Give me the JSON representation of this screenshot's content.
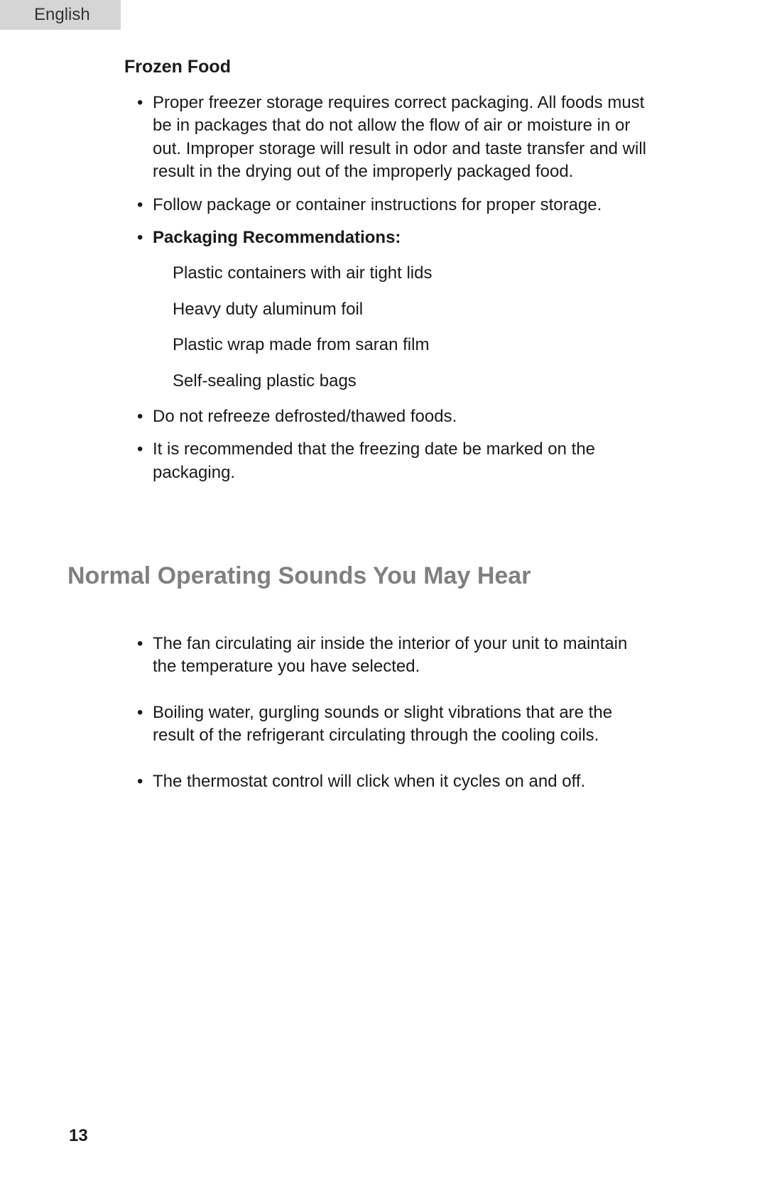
{
  "language_tab": "English",
  "frozen_food": {
    "title": "Frozen Food",
    "bullets": {
      "b1": "Proper freezer storage requires correct packaging.  All foods must be in packages that do not allow the flow of air or moisture in or out. Improper storage will result in odor and taste transfer and will result in the drying out of the improperly packaged food.",
      "b2": "Follow package or container instructions for proper storage.",
      "b3_label": "Packaging Recommendations:",
      "b3_items": {
        "i1": "Plastic containers with air tight lids",
        "i2": "Heavy duty aluminum foil",
        "i3": "Plastic wrap made from saran film",
        "i4": "Self-sealing plastic bags"
      },
      "b4": "Do not refreeze defrosted/thawed foods.",
      "b5": "It is recommended that the freezing date be marked on the packaging."
    }
  },
  "sounds": {
    "title": "Normal Operating Sounds You May Hear",
    "bullets": {
      "s1": "The fan circulating air inside the interior of your unit to maintain the temperature you have selected.",
      "s2": "Boiling water, gurgling sounds or slight vibrations that are the result of the refrigerant circulating through the cooling coils.",
      "s3": "The thermostat control will click when it cycles on and off."
    }
  },
  "page_number": "13",
  "colors": {
    "tab_bg": "#d5d5d5",
    "section_title": "#808080",
    "text": "#1a1a1a",
    "background": "#ffffff"
  },
  "typography": {
    "body_fontsize": 24,
    "subtitle_fontsize": 25,
    "section_title_fontsize": 34,
    "page_number_fontsize": 24
  }
}
